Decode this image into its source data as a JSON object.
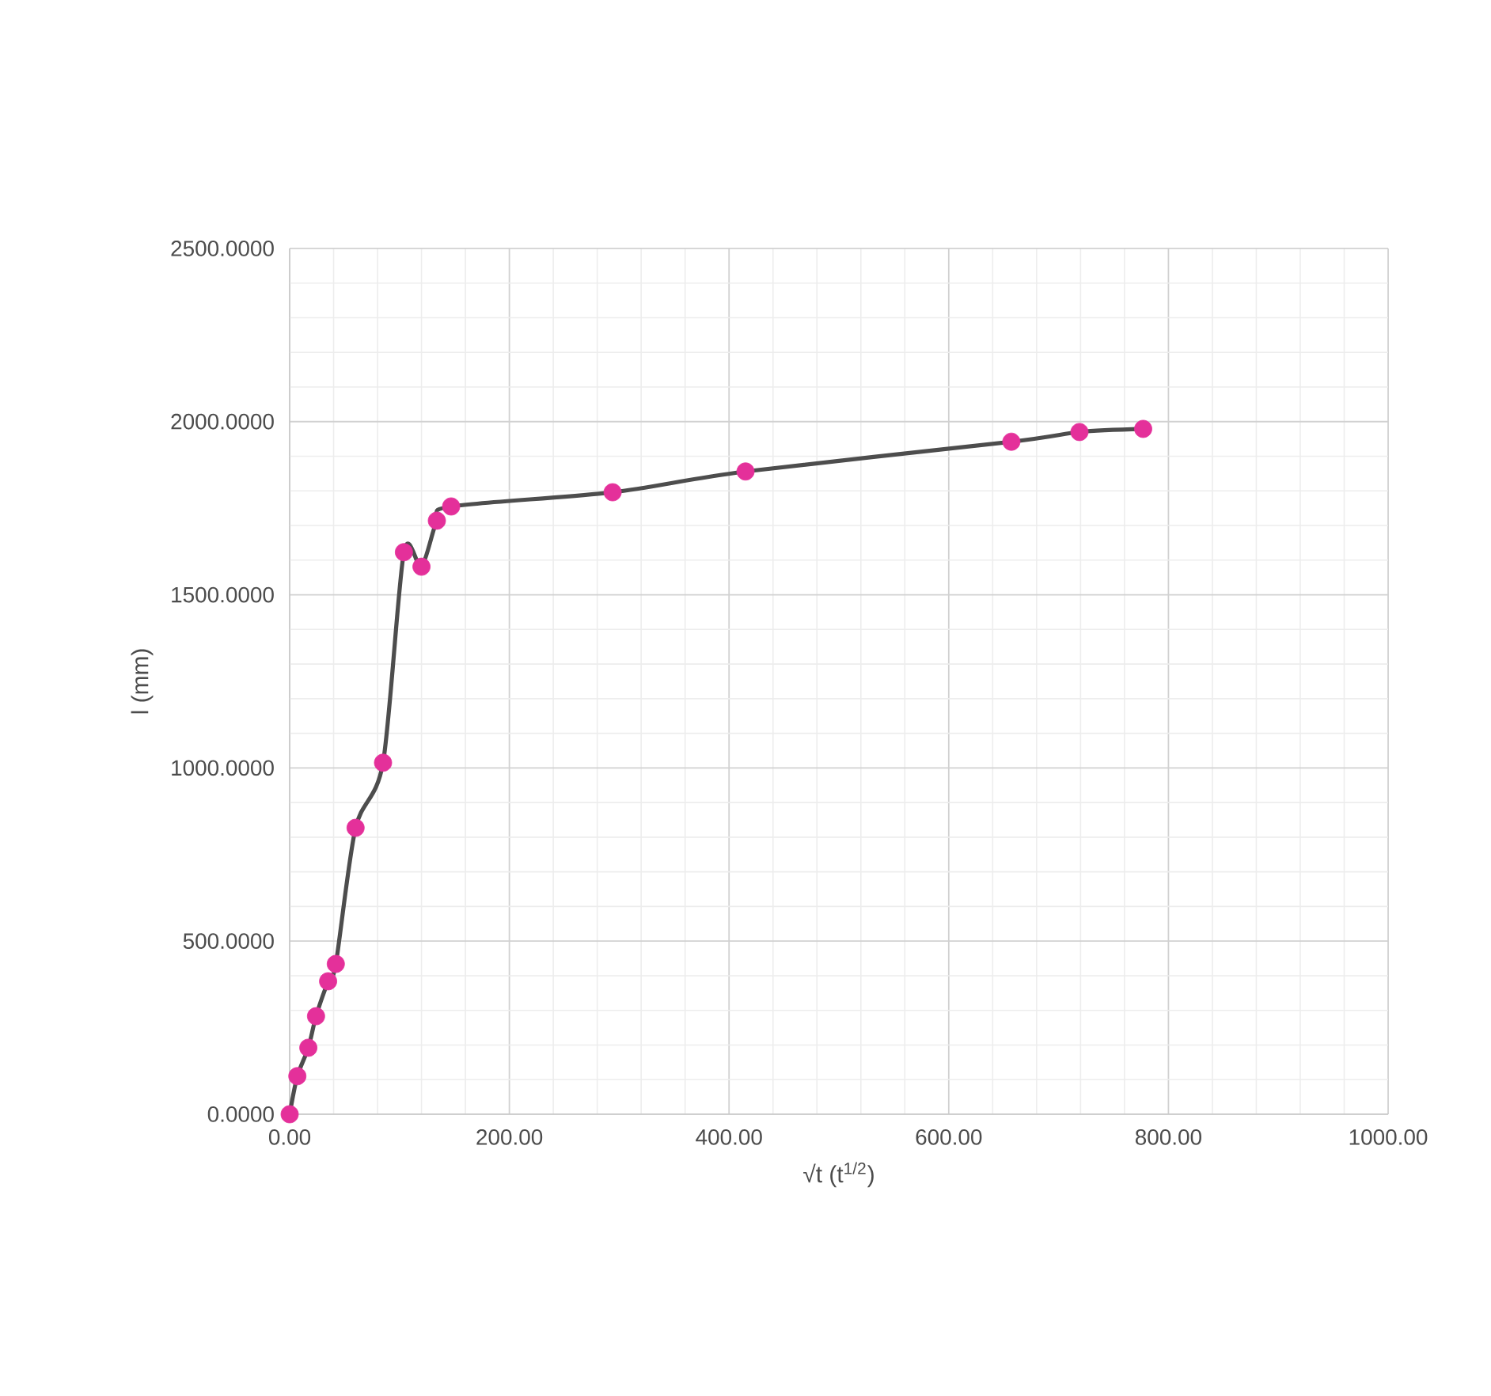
{
  "chart_data": {
    "type": "line",
    "xlabel": "√t (t$^{1/2}$)",
    "ylabel": "l (mm)",
    "x": [
      0,
      7,
      17,
      24,
      35,
      42,
      60,
      85,
      104,
      120,
      134,
      147,
      294,
      415,
      657,
      719,
      777
    ],
    "series": [
      {
        "color": "#4d4d4d",
        "colors": [
          "#e4309a",
          "#e4309a",
          "#e4309a",
          "#e4309a",
          "#e4309a",
          "#e4309a",
          "#e4309a",
          "#e4309a",
          "#e4309a",
          "#e4309a",
          "#e4309a",
          "#e4309a",
          "#e4309a",
          "#e4309a",
          "#e4309a",
          "#e4309a",
          "#e4309a"
        ],
        "values": [
          0,
          110,
          192,
          283,
          384,
          434,
          827,
          1015,
          1623,
          1581,
          1714,
          1755,
          1796,
          1856,
          1942,
          1970,
          1979
        ]
      }
    ],
    "marker": "circle",
    "grid": true,
    "xlim": [
      0,
      1000
    ],
    "ylim": [
      0,
      2500
    ],
    "xticks": [
      {
        "value": 0,
        "label": "0.00"
      },
      {
        "value": 200,
        "label": "200.00"
      },
      {
        "value": 400,
        "label": "400.00"
      },
      {
        "value": 600,
        "label": "600.00"
      },
      {
        "value": 800,
        "label": "800.00"
      },
      {
        "value": 1000,
        "label": "1000.00"
      }
    ],
    "yticks": [
      {
        "value": 0,
        "label": "0.0000"
      },
      {
        "value": 500,
        "label": "500.0000"
      },
      {
        "value": 1000,
        "label": "1000.0000"
      },
      {
        "value": 1500,
        "label": "1500.0000"
      },
      {
        "value": 2000,
        "label": "2000.0000"
      },
      {
        "value": 2500,
        "label": "2500.0000"
      }
    ]
  }
}
